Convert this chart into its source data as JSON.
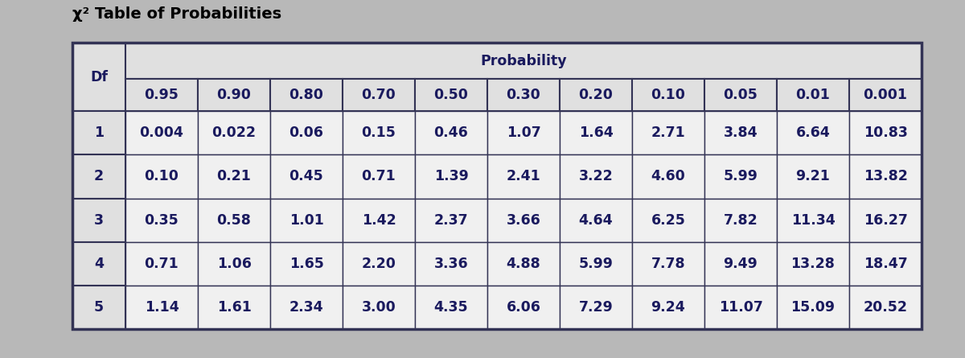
{
  "title": "χ² Table of Probabilities",
  "col_header_top": "Probability",
  "col_header_df": "Df",
  "prob_labels": [
    "0.95",
    "0.90",
    "0.80",
    "0.70",
    "0.50",
    "0.30",
    "0.20",
    "0.10",
    "0.05",
    "0.01",
    "0.001"
  ],
  "df_values": [
    1,
    2,
    3,
    4,
    5
  ],
  "table_data": [
    [
      "0.004",
      "0.022",
      "0.06",
      "0.15",
      "0.46",
      "1.07",
      "1.64",
      "2.71",
      "3.84",
      "6.64",
      "10.83"
    ],
    [
      "0.10",
      "0.21",
      "0.45",
      "0.71",
      "1.39",
      "2.41",
      "3.22",
      "4.60",
      "5.99",
      "9.21",
      "13.82"
    ],
    [
      "0.35",
      "0.58",
      "1.01",
      "1.42",
      "2.37",
      "3.66",
      "4.64",
      "6.25",
      "7.82",
      "11.34",
      "16.27"
    ],
    [
      "0.71",
      "1.06",
      "1.65",
      "2.20",
      "3.36",
      "4.88",
      "5.99",
      "7.78",
      "9.49",
      "13.28",
      "18.47"
    ],
    [
      "1.14",
      "1.61",
      "2.34",
      "3.00",
      "4.35",
      "6.06",
      "7.29",
      "9.24",
      "11.07",
      "15.09",
      "20.52"
    ]
  ],
  "bg_color": "#b8b8b8",
  "cell_bg": "#f0f0f0",
  "header_row_bg": "#e0e0e0",
  "text_color": "#1a1a5e",
  "title_color": "#000000",
  "border_color": "#333355",
  "font_size_data": 12.5,
  "font_size_header": 12.5,
  "font_size_title": 14
}
